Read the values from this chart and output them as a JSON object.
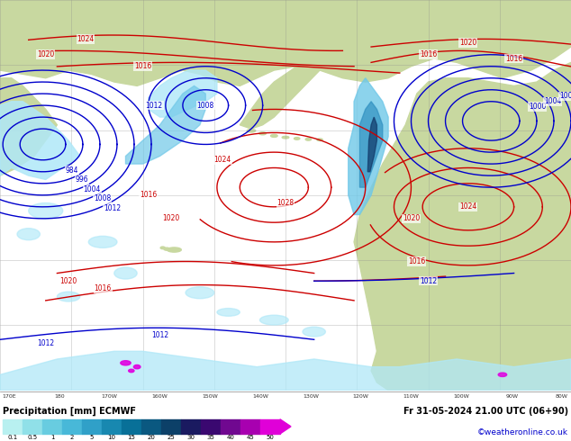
{
  "title_left": "Precipitation [mm] ECMWF",
  "title_right": "Fr 31-05-2024 21.00 UTC (06+90)",
  "credit": "©weatheronline.co.uk",
  "colorbar_values": [
    "0.1",
    "0.5",
    "1",
    "2",
    "5",
    "10",
    "15",
    "20",
    "25",
    "30",
    "35",
    "40",
    "45",
    "50"
  ],
  "colorbar_colors": [
    "#b8f0f0",
    "#90e0e8",
    "#68cce0",
    "#48b8d8",
    "#30a0c8",
    "#1888b0",
    "#087098",
    "#0a5880",
    "#0c4068",
    "#1a1a60",
    "#3a0870",
    "#700890",
    "#a800b0",
    "#e000d8"
  ],
  "ocean_color": "#c8c8c8",
  "land_color": "#c8d8a0",
  "fig_width": 6.34,
  "fig_height": 4.9,
  "dpi": 100,
  "bottom_bar_height": 0.115,
  "bottom_bg": "#ffffff",
  "grid_color": "#888888",
  "red_isobar_color": "#cc0000",
  "blue_isobar_color": "#0000cc",
  "precip_light": "#b0e8f8",
  "precip_mid": "#70c8e8",
  "precip_heavy": "#3090c0",
  "precip_dark": "#103868",
  "precip_purple": "#800090",
  "precip_magenta": "#e000e0"
}
